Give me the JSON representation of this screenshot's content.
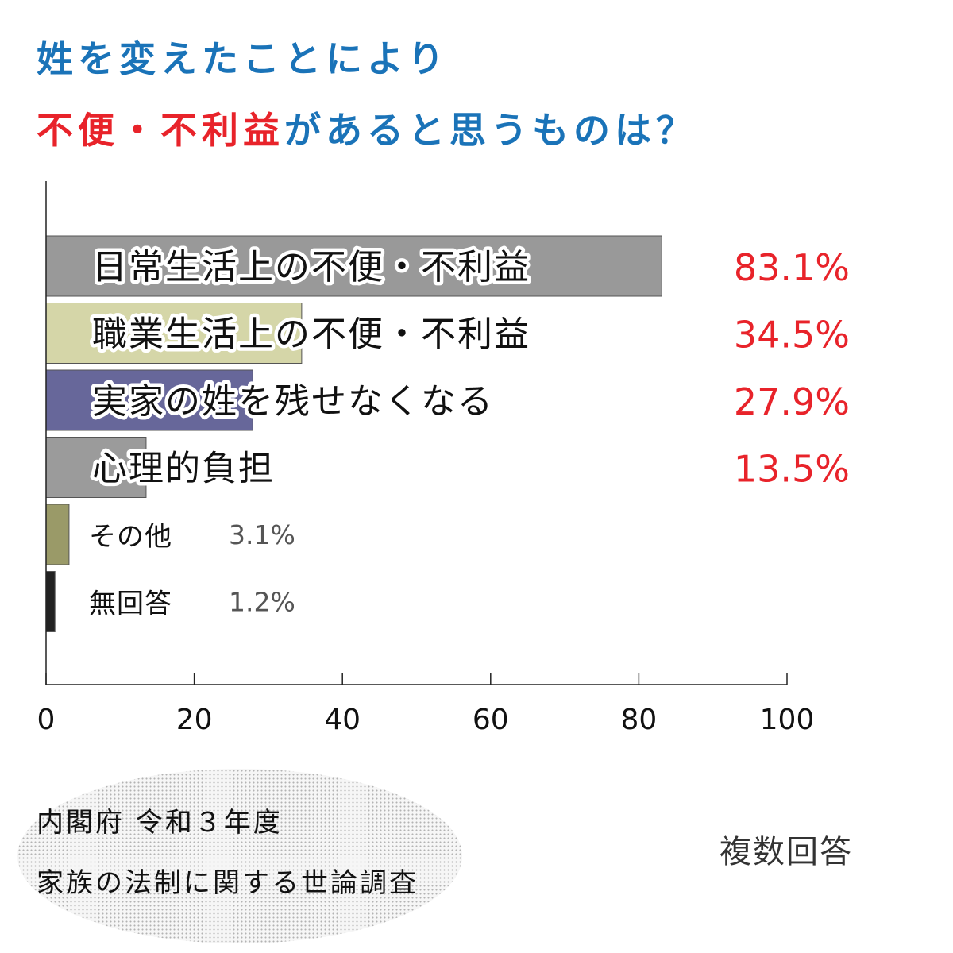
{
  "title": {
    "line1": "姓を変えたことにより",
    "line2_red": "不便・不利益",
    "line2_blue": "があると思うものは？"
  },
  "colors": {
    "title_blue": "#1a73b8",
    "title_red": "#e8232a",
    "value_red": "#e8232a"
  },
  "chart_data": {
    "type": "bar",
    "orientation": "horizontal",
    "title": "姓を変えたことにより 不便・不利益があると思うものは？",
    "categories": [
      "日常生活上の不便・不利益",
      "職業生活上の不便・不利益",
      "実家の姓を残せなくなる",
      "心理的負担",
      "その他",
      "無回答"
    ],
    "values": [
      83.1,
      34.5,
      27.9,
      13.5,
      3.1,
      1.2
    ],
    "value_labels": [
      "83.1%",
      "34.5%",
      "27.9%",
      "13.5%",
      "3.1%",
      "1.2%"
    ],
    "bar_colors": [
      "#999999",
      "#d5d6a8",
      "#67679a",
      "#9b9b9b",
      "#9a9a68",
      "#222222"
    ],
    "xlim": [
      0,
      100
    ],
    "xticks": [
      0,
      20,
      40,
      60,
      80,
      100
    ],
    "xlabel": "",
    "ylabel": "",
    "grid": false
  },
  "source": {
    "line1": "内閣府 令和３年度",
    "line2": "家族の法制に関する世論調査"
  },
  "note": "複数回答"
}
